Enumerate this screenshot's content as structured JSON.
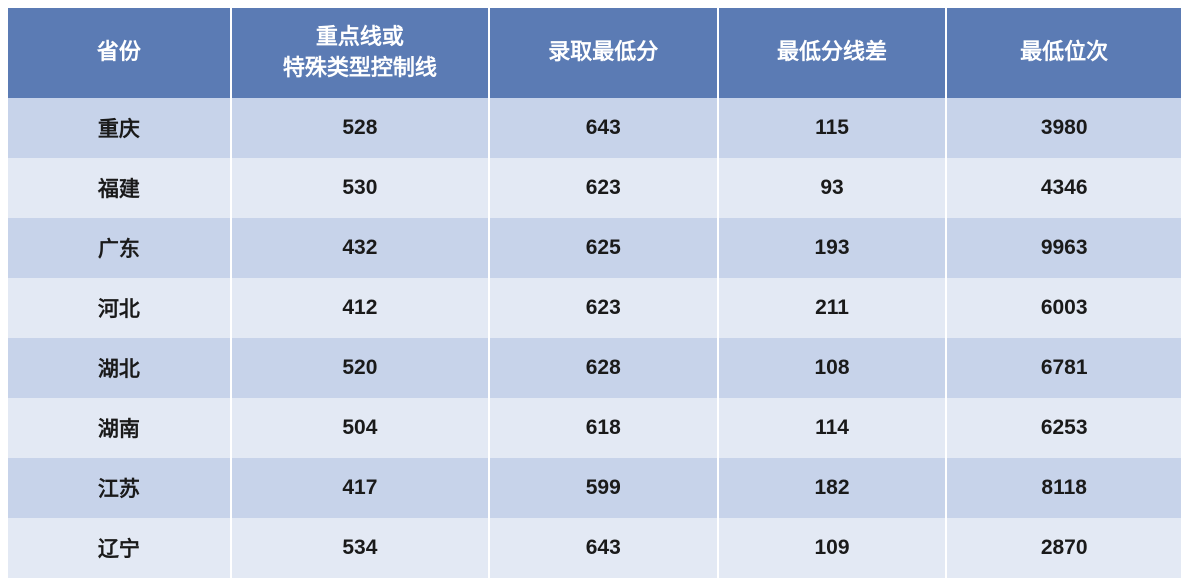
{
  "table": {
    "type": "table",
    "header_bg": "#5b7bb4",
    "header_text_color": "#ffffff",
    "cell_text_color": "#1a1a1a",
    "row_odd_bg": "#c7d3ea",
    "row_even_bg": "#e3e9f4",
    "header_fontsize": 22,
    "cell_fontsize": 21,
    "columns": [
      {
        "key": "province",
        "label": "省份",
        "width": "19%"
      },
      {
        "key": "keyline",
        "label_line1": "重点线或",
        "label_line2": "特殊类型控制线",
        "width": "22%"
      },
      {
        "key": "min_score",
        "label": "录取最低分",
        "width": "19.5%"
      },
      {
        "key": "score_diff",
        "label": "最低分线差",
        "width": "19.5%"
      },
      {
        "key": "min_rank",
        "label": "最低位次",
        "width": "20%"
      }
    ],
    "rows": [
      {
        "province": "重庆",
        "keyline": "528",
        "min_score": "643",
        "score_diff": "115",
        "min_rank": "3980"
      },
      {
        "province": "福建",
        "keyline": "530",
        "min_score": "623",
        "score_diff": "93",
        "min_rank": "4346"
      },
      {
        "province": "广东",
        "keyline": "432",
        "min_score": "625",
        "score_diff": "193",
        "min_rank": "9963"
      },
      {
        "province": "河北",
        "keyline": "412",
        "min_score": "623",
        "score_diff": "211",
        "min_rank": "6003"
      },
      {
        "province": "湖北",
        "keyline": "520",
        "min_score": "628",
        "score_diff": "108",
        "min_rank": "6781"
      },
      {
        "province": "湖南",
        "keyline": "504",
        "min_score": "618",
        "score_diff": "114",
        "min_rank": "6253"
      },
      {
        "province": "江苏",
        "keyline": "417",
        "min_score": "599",
        "score_diff": "182",
        "min_rank": "8118"
      },
      {
        "province": "辽宁",
        "keyline": "534",
        "min_score": "643",
        "score_diff": "109",
        "min_rank": "2870"
      }
    ]
  }
}
